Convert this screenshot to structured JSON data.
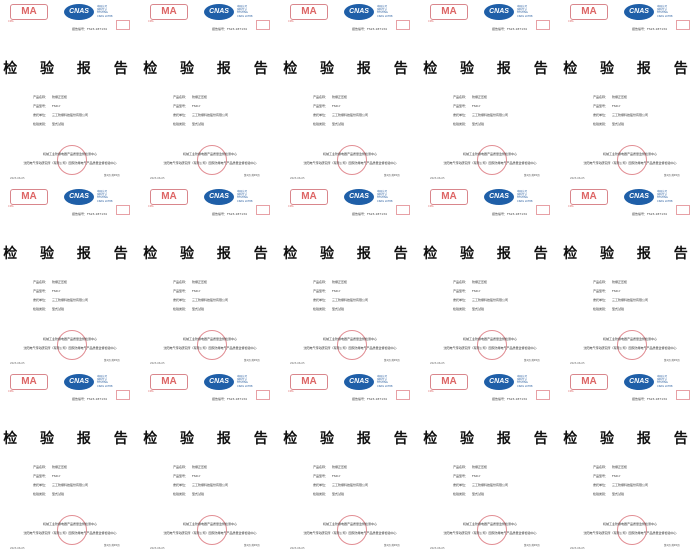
{
  "report": {
    "ma_logo": "MA",
    "ma_sub": "CMA",
    "cnas_logo": "CNAS",
    "cnas_text": [
      "中国认可",
      "国际互认",
      "TESTING",
      "CNAS L0788"
    ],
    "report_no_label": "报告编号：",
    "report_no": "FS23-187134",
    "title": "检 验 报 告",
    "fields": [
      {
        "label": "产品名称：",
        "value": "防爆正压柜"
      },
      {
        "label": "产品型号：",
        "value": "FSD-Y"
      },
      {
        "label": "委托单位：",
        "value": "三工防爆科技股份有限公司"
      },
      {
        "label": "检验类别：",
        "value": "型式试验"
      }
    ],
    "org_line1": "机械工业防爆电器产品质量监督检测中心",
    "org_line2": "沈阳电气传动研究所（有限公司）国家防爆电气产品质量监督检验中心",
    "date": "2023-06-05",
    "page": "第1页 共45页"
  },
  "grid": {
    "columns": 5,
    "rows": 3
  }
}
